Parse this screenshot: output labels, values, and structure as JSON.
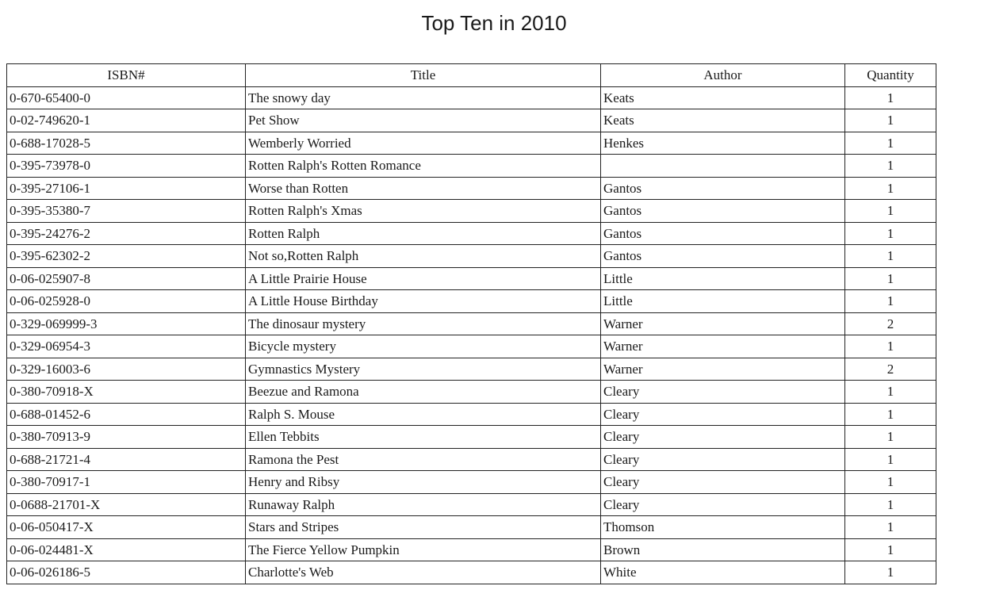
{
  "title": "Top Ten in 2010",
  "table": {
    "headers": [
      "ISBN#",
      "Title",
      "Author",
      "Quantity"
    ],
    "rows": [
      [
        "0-670-65400-0",
        "The snowy day",
        "Keats",
        "1"
      ],
      [
        "0-02-749620-1",
        "Pet Show",
        "Keats",
        "1"
      ],
      [
        "0-688-17028-5",
        "Wemberly Worried",
        "Henkes",
        "1"
      ],
      [
        "0-395-73978-0",
        "Rotten Ralph's Rotten Romance",
        "",
        "1"
      ],
      [
        "0-395-27106-1",
        "Worse than Rotten",
        "Gantos",
        "1"
      ],
      [
        "0-395-35380-7",
        "Rotten Ralph's Xmas",
        "Gantos",
        "1"
      ],
      [
        "0-395-24276-2",
        "Rotten Ralph",
        "Gantos",
        "1"
      ],
      [
        "0-395-62302-2",
        "Not so,Rotten Ralph",
        "Gantos",
        "1"
      ],
      [
        "0-06-025907-8",
        "A Little Prairie House",
        "Little",
        "1"
      ],
      [
        "0-06-025928-0",
        "A Little House Birthday",
        "Little",
        "1"
      ],
      [
        "0-329-069999-3",
        "The dinosaur mystery",
        "Warner",
        "2"
      ],
      [
        "0-329-06954-3",
        "Bicycle mystery",
        "Warner",
        "1"
      ],
      [
        "0-329-16003-6",
        "Gymnastics Mystery",
        "Warner",
        "2"
      ],
      [
        "0-380-70918-X",
        "Beezue and Ramona",
        "Cleary",
        "1"
      ],
      [
        "0-688-01452-6",
        "Ralph S. Mouse",
        "Cleary",
        "1"
      ],
      [
        "0-380-70913-9",
        "Ellen Tebbits",
        "Cleary",
        "1"
      ],
      [
        "0-688-21721-4",
        "Ramona the Pest",
        "Cleary",
        "1"
      ],
      [
        "0-380-70917-1",
        "Henry and Ribsy",
        "Cleary",
        "1"
      ],
      [
        "0-0688-21701-X",
        "Runaway Ralph",
        "Cleary",
        "1"
      ],
      [
        "0-06-050417-X",
        "Stars and Stripes",
        "Thomson",
        "1"
      ],
      [
        "0-06-024481-X",
        "The Fierce Yellow Pumpkin",
        "Brown",
        "1"
      ],
      [
        "0-06-026186-5",
        "Charlotte's Web",
        "White",
        "1"
      ]
    ]
  }
}
